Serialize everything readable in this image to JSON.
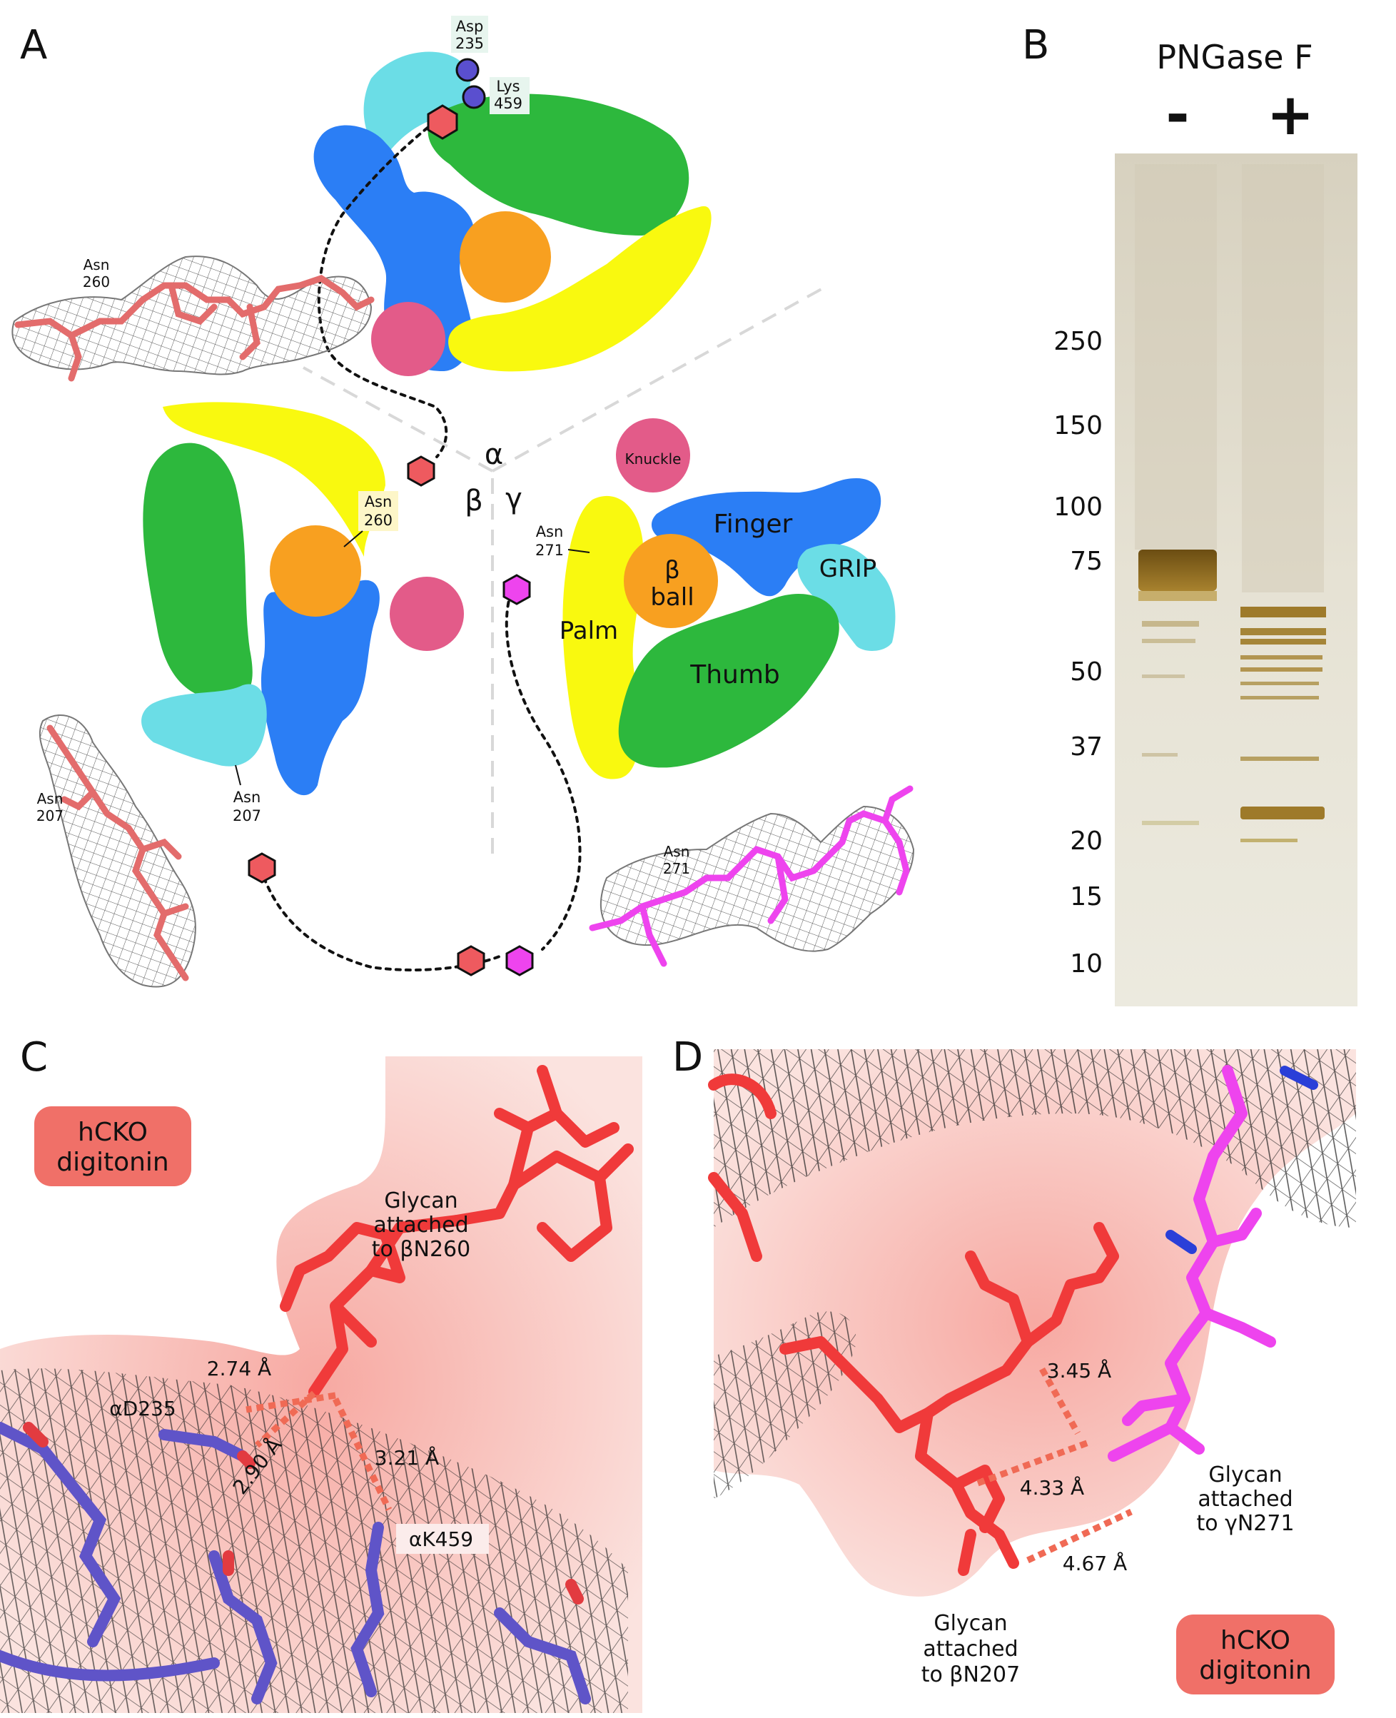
{
  "panels": {
    "a": {
      "letter": "A",
      "subunits": {
        "alpha": "α",
        "beta": "β",
        "gamma": "γ"
      },
      "domains": {
        "knuckle": "Knuckle",
        "finger": "Finger",
        "grip": "GRIP",
        "beta_ball_1": "β",
        "beta_ball_2": "ball",
        "palm": "Palm",
        "thumb": "Thumb"
      },
      "residues": {
        "asp235": [
          "Asp",
          "235"
        ],
        "lys459": [
          "Lys",
          "459"
        ],
        "asn260": [
          "Asn",
          "260"
        ],
        "asn271": [
          "Asn",
          "271"
        ],
        "asn207": [
          "Asn",
          "207"
        ]
      },
      "insets": {
        "asn260": [
          "Asn",
          "260"
        ],
        "asn207": [
          "Asn",
          "207"
        ],
        "asn271": [
          "Asn",
          "271"
        ]
      },
      "colors": {
        "finger": "#2b7ef5",
        "thumb": "#2db83d",
        "palm": "#f9f90f",
        "beta_ball": "#f8a020",
        "knuckle": "#e35b89",
        "grip": "#6bdde6",
        "glycan_red": "#ee5a5f",
        "glycan_magenta": "#ee44ee"
      }
    },
    "b": {
      "letter": "B",
      "treatment": "PNGase F",
      "lanes": [
        "-",
        "+"
      ],
      "markers": [
        "250",
        "150",
        "100",
        "75",
        "50",
        "37",
        "20",
        "15",
        "10"
      ]
    },
    "c": {
      "letter": "C",
      "badge": [
        "hCKO",
        "digitonin"
      ],
      "glycan_label": [
        "Glycan",
        "attached",
        "to βN260"
      ],
      "residues": [
        "αD235",
        "αK459"
      ],
      "distances": [
        "2.74 Å",
        "2.90 Å",
        "3.21 Å"
      ]
    },
    "d": {
      "letter": "D",
      "badge": [
        "hCKO",
        "digitonin"
      ],
      "glycan_right": [
        "Glycan",
        "attached",
        "to γN271"
      ],
      "glycan_bottom": [
        "Glycan",
        "attached",
        "to βN207"
      ],
      "distances": [
        "3.45 Å",
        "4.33 Å",
        "4.67 Å"
      ]
    }
  }
}
